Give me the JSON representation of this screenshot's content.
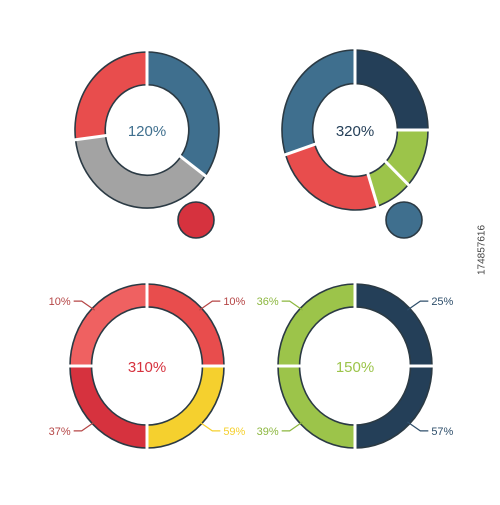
{
  "colors": {
    "outline": "#2b3a44",
    "red": "#e84d4d",
    "light_red": "#ef6161",
    "crimson": "#d6323e",
    "gray": "#a3a3a3",
    "steel": "#3f6f8e",
    "navy": "#243f58",
    "lime": "#9cc44a",
    "yellow": "#f5d02e",
    "label_red": "#b54646",
    "label_blue": "#2f4f6b",
    "label_green": "#8cb73f"
  },
  "chart_data": [
    {
      "type": "pie",
      "center_label": "120%",
      "center_label_color": "steel",
      "slices": [
        {
          "value": 35,
          "color": "steel",
          "label": ""
        },
        {
          "value": 38,
          "color": "gray",
          "label": ""
        },
        {
          "value": 27,
          "color": "red",
          "label": ""
        }
      ],
      "bubble_color": "crimson"
    },
    {
      "type": "pie",
      "center_label": "320%",
      "center_label_color": "navy",
      "slices": [
        {
          "value": 25,
          "color": "navy",
          "label": ""
        },
        {
          "value": 12,
          "color": "lime",
          "label": ""
        },
        {
          "value": 8,
          "color": "lime",
          "label": ""
        },
        {
          "value": 25,
          "color": "red",
          "label": ""
        },
        {
          "value": 30,
          "color": "steel",
          "label": ""
        }
      ],
      "bubble_color": "steel"
    },
    {
      "type": "pie",
      "center_label": "310%",
      "center_label_color": "crimson",
      "slices": [
        {
          "value": 25,
          "color": "red",
          "label": "10%",
          "label_color": "label_red",
          "corner": "top-right"
        },
        {
          "value": 25,
          "color": "yellow",
          "label": "59%",
          "label_color": "yellow",
          "corner": "bottom-right"
        },
        {
          "value": 25,
          "color": "crimson",
          "label": "37%",
          "label_color": "label_red",
          "corner": "bottom-left"
        },
        {
          "value": 25,
          "color": "light_red",
          "label": "10%",
          "label_color": "label_red",
          "corner": "top-left"
        }
      ]
    },
    {
      "type": "pie",
      "center_label": "150%",
      "center_label_color": "lime",
      "slices": [
        {
          "value": 25,
          "color": "navy",
          "label": "25%",
          "label_color": "label_blue",
          "corner": "top-right"
        },
        {
          "value": 25,
          "color": "navy",
          "label": "57%",
          "label_color": "label_blue",
          "corner": "bottom-right"
        },
        {
          "value": 25,
          "color": "lime",
          "label": "39%",
          "label_color": "label_green",
          "corner": "bottom-left"
        },
        {
          "value": 25,
          "color": "lime",
          "label": "36%",
          "label_color": "label_green",
          "corner": "top-left"
        }
      ]
    }
  ],
  "watermark": "174857616"
}
